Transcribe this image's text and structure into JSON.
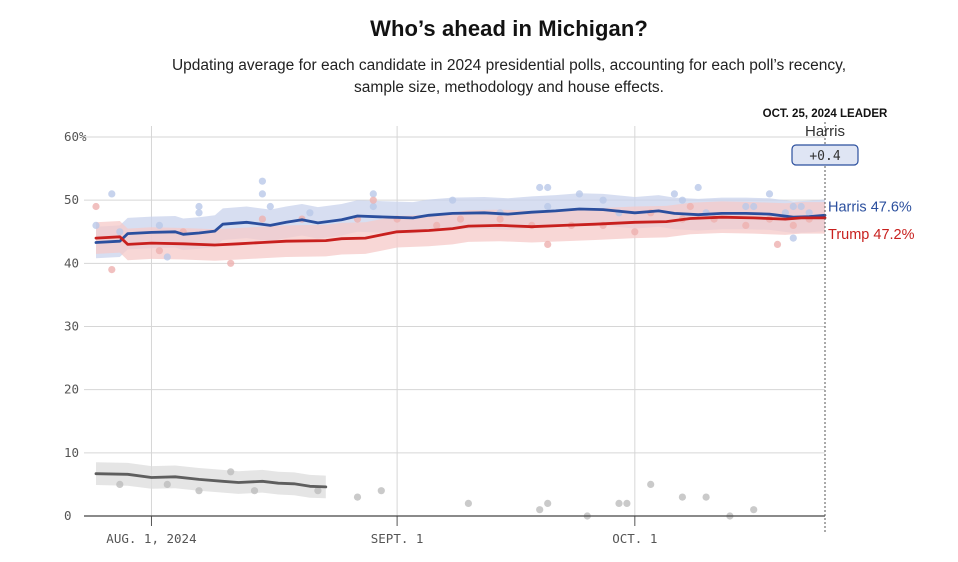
{
  "title": "Who’s ahead in Michigan?",
  "subtitle_lines": [
    "Updating average for each candidate in 2024 presidential polls, accounting for each poll’s recency,",
    "sample size, methodology and house effects."
  ],
  "leader": {
    "date_label": "OCT. 25, 2024 LEADER",
    "name": "Harris",
    "margin": "+0.4"
  },
  "colors": {
    "harris": "#2b4f9e",
    "harris_band": "#c9d3ec",
    "harris_dot": "#b9c8e8",
    "trump": "#c8201e",
    "trump_band": "#f5c9c8",
    "trump_dot": "#eeb0af",
    "other": "#5e5e5e",
    "other_band": "#dcdcdc",
    "other_dot": "#bdbdbd",
    "grid": "#d6d6d6",
    "leader_box_fill": "#dfe5f4",
    "leader_box_stroke": "#2b4f9e"
  },
  "chart_data": {
    "type": "line",
    "title": "Who’s ahead in Michigan?",
    "x_ticks": [
      {
        "date": "2024-08-01",
        "label": "AUG. 1, 2024"
      },
      {
        "date": "2024-09-01",
        "label": "SEPT. 1"
      },
      {
        "date": "2024-10-01",
        "label": "OCT. 1"
      }
    ],
    "y_ticks": [
      {
        "value": 0,
        "label": "0"
      },
      {
        "value": 10,
        "label": "10"
      },
      {
        "value": 20,
        "label": "20"
      },
      {
        "value": 30,
        "label": "30"
      },
      {
        "value": 40,
        "label": "40"
      },
      {
        "value": 50,
        "label": "50"
      },
      {
        "value": 60,
        "label": "60%"
      }
    ],
    "ylim": [
      0,
      60
    ],
    "xlim": [
      "2024-07-25",
      "2024-10-25"
    ],
    "grid": true,
    "series": [
      {
        "name": "Harris",
        "end_label": "Harris 47.6%",
        "band_width": 2.5,
        "points": [
          [
            "2024-07-25",
            43.3
          ],
          [
            "2024-07-28",
            43.5
          ],
          [
            "2024-07-29",
            44.7
          ],
          [
            "2024-08-01",
            44.9
          ],
          [
            "2024-08-04",
            45.0
          ],
          [
            "2024-08-05",
            44.6
          ],
          [
            "2024-08-07",
            44.8
          ],
          [
            "2024-08-09",
            45.1
          ],
          [
            "2024-08-10",
            46.2
          ],
          [
            "2024-08-13",
            46.5
          ],
          [
            "2024-08-16",
            46.0
          ],
          [
            "2024-08-18",
            46.5
          ],
          [
            "2024-08-20",
            46.9
          ],
          [
            "2024-08-22",
            46.4
          ],
          [
            "2024-08-25",
            46.9
          ],
          [
            "2024-08-27",
            47.5
          ],
          [
            "2024-08-31",
            47.3
          ],
          [
            "2024-09-03",
            47.2
          ],
          [
            "2024-09-05",
            47.6
          ],
          [
            "2024-09-08",
            47.9
          ],
          [
            "2024-09-12",
            48.0
          ],
          [
            "2024-09-15",
            47.8
          ],
          [
            "2024-09-18",
            48.1
          ],
          [
            "2024-09-21",
            48.3
          ],
          [
            "2024-09-24",
            48.6
          ],
          [
            "2024-09-27",
            48.5
          ],
          [
            "2024-10-01",
            48.0
          ],
          [
            "2024-10-04",
            48.3
          ],
          [
            "2024-10-06",
            47.9
          ],
          [
            "2024-10-09",
            47.7
          ],
          [
            "2024-10-12",
            47.9
          ],
          [
            "2024-10-15",
            47.9
          ],
          [
            "2024-10-18",
            47.8
          ],
          [
            "2024-10-21",
            47.3
          ],
          [
            "2024-10-23",
            47.4
          ],
          [
            "2024-10-25",
            47.6
          ]
        ],
        "polls": [
          [
            "2024-07-25",
            46
          ],
          [
            "2024-07-27",
            51
          ],
          [
            "2024-07-28",
            45
          ],
          [
            "2024-08-02",
            46
          ],
          [
            "2024-08-03",
            41
          ],
          [
            "2024-08-07",
            49
          ],
          [
            "2024-08-07",
            48
          ],
          [
            "2024-08-15",
            53
          ],
          [
            "2024-08-15",
            51
          ],
          [
            "2024-08-16",
            49
          ],
          [
            "2024-08-21",
            48
          ],
          [
            "2024-08-29",
            51
          ],
          [
            "2024-08-29",
            49
          ],
          [
            "2024-09-08",
            50
          ],
          [
            "2024-09-14",
            48
          ],
          [
            "2024-09-19",
            52
          ],
          [
            "2024-09-20",
            52
          ],
          [
            "2024-09-20",
            49
          ],
          [
            "2024-09-24",
            51
          ],
          [
            "2024-09-27",
            50
          ],
          [
            "2024-09-29",
            48
          ],
          [
            "2024-10-06",
            51
          ],
          [
            "2024-10-07",
            50
          ],
          [
            "2024-10-09",
            52
          ],
          [
            "2024-10-10",
            48
          ],
          [
            "2024-10-15",
            49
          ],
          [
            "2024-10-16",
            49
          ],
          [
            "2024-10-18",
            51
          ],
          [
            "2024-10-20",
            48
          ],
          [
            "2024-10-21",
            44
          ],
          [
            "2024-10-21",
            49
          ],
          [
            "2024-10-22",
            49
          ],
          [
            "2024-10-23",
            48
          ]
        ]
      },
      {
        "name": "Trump",
        "end_label": "Trump 47.2%",
        "band_width": 2.5,
        "points": [
          [
            "2024-07-25",
            44.0
          ],
          [
            "2024-07-28",
            44.2
          ],
          [
            "2024-07-29",
            43.0
          ],
          [
            "2024-08-01",
            43.2
          ],
          [
            "2024-08-05",
            43.1
          ],
          [
            "2024-08-09",
            42.9
          ],
          [
            "2024-08-12",
            43.1
          ],
          [
            "2024-08-15",
            43.3
          ],
          [
            "2024-08-18",
            43.5
          ],
          [
            "2024-08-23",
            43.6
          ],
          [
            "2024-08-25",
            43.9
          ],
          [
            "2024-08-28",
            44.0
          ],
          [
            "2024-08-30",
            44.5
          ],
          [
            "2024-09-01",
            45.0
          ],
          [
            "2024-09-05",
            45.2
          ],
          [
            "2024-09-08",
            45.5
          ],
          [
            "2024-09-10",
            45.9
          ],
          [
            "2024-09-14",
            46.0
          ],
          [
            "2024-09-18",
            45.8
          ],
          [
            "2024-09-22",
            46.0
          ],
          [
            "2024-09-26",
            46.2
          ],
          [
            "2024-10-01",
            46.5
          ],
          [
            "2024-10-05",
            46.6
          ],
          [
            "2024-10-08",
            47.1
          ],
          [
            "2024-10-12",
            47.3
          ],
          [
            "2024-10-16",
            47.2
          ],
          [
            "2024-10-20",
            47.0
          ],
          [
            "2024-10-22",
            47.2
          ],
          [
            "2024-10-25",
            47.2
          ]
        ],
        "polls": [
          [
            "2024-07-25",
            49
          ],
          [
            "2024-07-27",
            39
          ],
          [
            "2024-08-02",
            42
          ],
          [
            "2024-08-05",
            45
          ],
          [
            "2024-08-11",
            40
          ],
          [
            "2024-08-15",
            47
          ],
          [
            "2024-08-20",
            47
          ],
          [
            "2024-08-27",
            47
          ],
          [
            "2024-08-29",
            50
          ],
          [
            "2024-09-01",
            47
          ],
          [
            "2024-09-06",
            46
          ],
          [
            "2024-09-09",
            47
          ],
          [
            "2024-09-14",
            47
          ],
          [
            "2024-09-18",
            46
          ],
          [
            "2024-09-20",
            43
          ],
          [
            "2024-09-23",
            46
          ],
          [
            "2024-09-27",
            46
          ],
          [
            "2024-10-01",
            45
          ],
          [
            "2024-10-03",
            48
          ],
          [
            "2024-10-07",
            47
          ],
          [
            "2024-10-08",
            49
          ],
          [
            "2024-10-11",
            47
          ],
          [
            "2024-10-15",
            46
          ],
          [
            "2024-10-18",
            47
          ],
          [
            "2024-10-19",
            43
          ],
          [
            "2024-10-21",
            46
          ],
          [
            "2024-10-23",
            47
          ]
        ]
      },
      {
        "name": "",
        "end_label": "",
        "band_width": 1.8,
        "points": [
          [
            "2024-07-25",
            6.7
          ],
          [
            "2024-07-29",
            6.6
          ],
          [
            "2024-08-01",
            6.1
          ],
          [
            "2024-08-04",
            6.2
          ],
          [
            "2024-08-07",
            5.8
          ],
          [
            "2024-08-10",
            5.5
          ],
          [
            "2024-08-12",
            5.3
          ],
          [
            "2024-08-15",
            5.5
          ],
          [
            "2024-08-17",
            5.2
          ],
          [
            "2024-08-19",
            5.1
          ],
          [
            "2024-08-21",
            4.7
          ],
          [
            "2024-08-23",
            4.6
          ]
        ],
        "polls": [
          [
            "2024-07-28",
            5
          ],
          [
            "2024-08-03",
            5
          ],
          [
            "2024-08-07",
            4
          ],
          [
            "2024-08-11",
            7
          ],
          [
            "2024-08-14",
            4
          ],
          [
            "2024-08-22",
            4
          ],
          [
            "2024-08-27",
            3
          ],
          [
            "2024-08-30",
            4
          ],
          [
            "2024-09-10",
            2
          ],
          [
            "2024-09-19",
            1
          ],
          [
            "2024-09-20",
            2
          ],
          [
            "2024-09-25",
            0
          ],
          [
            "2024-09-29",
            2
          ],
          [
            "2024-09-30",
            2
          ],
          [
            "2024-10-03",
            5
          ],
          [
            "2024-10-07",
            3
          ],
          [
            "2024-10-10",
            3
          ],
          [
            "2024-10-13",
            0
          ],
          [
            "2024-10-16",
            1
          ]
        ]
      }
    ]
  }
}
